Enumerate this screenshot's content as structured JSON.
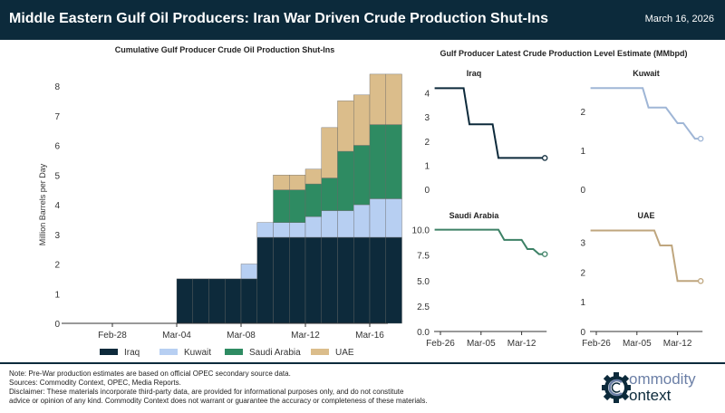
{
  "header": {
    "title": "Middle Eastern Gulf Oil Producers: Iran War Driven Crude Production Shut-Ins",
    "date": "March 16, 2026"
  },
  "colors": {
    "Iraq": "#0d2a3b",
    "Kuwait": "#b7cff2",
    "Saudi Arabia": "#2e8b62",
    "UAE": "#dbbd8b",
    "header": "#0c2a3b"
  },
  "line_colors": {
    "Iraq": "#0d2a3b",
    "Kuwait": "#9fb6d6",
    "Saudi Arabia": "#3d8166",
    "UAE": "#bfa67e"
  },
  "chart_data": [
    {
      "type": "bar",
      "stacked": true,
      "title": "Cumulative Gulf Producer Crude Oil Production Shut-Ins",
      "ylabel": "Million Barrels per Day",
      "xlabel": "",
      "ylim": [
        0,
        8.5
      ],
      "yticks": [
        "0",
        "1",
        "2",
        "3",
        "4",
        "5",
        "6",
        "7",
        "8"
      ],
      "xticks": [
        "Feb-28",
        "Mar-04",
        "Mar-08",
        "Mar-12",
        "Mar-16"
      ],
      "categories": [
        "Mar-03",
        "Mar-04",
        "Mar-05",
        "Mar-06",
        "Mar-07",
        "Mar-08",
        "Mar-09",
        "Mar-10",
        "Mar-11",
        "Mar-12",
        "Mar-13",
        "Mar-14",
        "Mar-15",
        "Mar-16"
      ],
      "legend_position": "bottom",
      "series": [
        {
          "name": "Iraq",
          "values": [
            1.5,
            1.5,
            1.5,
            1.5,
            1.5,
            2.9,
            2.9,
            2.9,
            2.9,
            2.9,
            2.9,
            2.9,
            2.9,
            2.9
          ]
        },
        {
          "name": "Kuwait",
          "values": [
            0,
            0,
            0,
            0,
            0.5,
            0.5,
            0.5,
            0.5,
            0.7,
            0.9,
            0.9,
            1.1,
            1.3,
            1.3
          ]
        },
        {
          "name": "Saudi Arabia",
          "values": [
            0,
            0,
            0,
            0,
            0,
            0,
            1.1,
            1.1,
            1.1,
            1.1,
            2.0,
            2.0,
            2.5,
            2.5
          ]
        },
        {
          "name": "UAE",
          "values": [
            0,
            0,
            0,
            0,
            0,
            0,
            0.5,
            0.5,
            0.5,
            1.7,
            1.7,
            1.7,
            1.7,
            1.7
          ]
        }
      ]
    },
    {
      "type": "line",
      "title": "Gulf Producer Latest Crude Production Level Estimate (MMbpd)",
      "dates": [
        "Feb-25",
        "Feb-26",
        "Feb-27",
        "Feb-28",
        "Mar-01",
        "Mar-02",
        "Mar-03",
        "Mar-04",
        "Mar-05",
        "Mar-06",
        "Mar-07",
        "Mar-08",
        "Mar-09",
        "Mar-10",
        "Mar-11",
        "Mar-12",
        "Mar-13",
        "Mar-14",
        "Mar-15",
        "Mar-16"
      ],
      "xticks": [
        "Feb-26",
        "Mar-05",
        "Mar-12"
      ],
      "panels": [
        {
          "name": "Iraq",
          "ylim": [
            0,
            4.4
          ],
          "yticks": [
            "0",
            "1",
            "2",
            "3",
            "4"
          ],
          "values": [
            4.2,
            4.2,
            4.2,
            4.2,
            4.2,
            4.2,
            2.7,
            2.7,
            2.7,
            2.7,
            2.7,
            1.3,
            1.3,
            1.3,
            1.3,
            1.3,
            1.3,
            1.3,
            1.3,
            1.3
          ]
        },
        {
          "name": "Kuwait",
          "ylim": [
            0,
            2.7
          ],
          "yticks": [
            "0",
            "1",
            "2"
          ],
          "values": [
            2.6,
            2.6,
            2.6,
            2.6,
            2.6,
            2.6,
            2.6,
            2.6,
            2.6,
            2.6,
            2.1,
            2.1,
            2.1,
            2.1,
            1.9,
            1.7,
            1.7,
            1.5,
            1.3,
            1.3
          ]
        },
        {
          "name": "Saudi Arabia",
          "ylim": [
            0,
            10.5
          ],
          "yticks": [
            "0.0",
            "2.5",
            "5.0",
            "7.5",
            "10.0"
          ],
          "values": [
            10,
            10,
            10,
            10,
            10,
            10,
            10,
            10,
            10,
            10,
            10,
            10,
            9,
            9,
            9,
            9,
            8.1,
            8.1,
            7.6,
            7.6
          ]
        },
        {
          "name": "UAE",
          "ylim": [
            0,
            3.6
          ],
          "yticks": [
            "0",
            "1",
            "2",
            "3"
          ],
          "values": [
            3.4,
            3.4,
            3.4,
            3.4,
            3.4,
            3.4,
            3.4,
            3.4,
            3.4,
            3.4,
            3.4,
            3.4,
            2.9,
            2.9,
            2.9,
            1.7,
            1.7,
            1.7,
            1.7,
            1.7
          ]
        }
      ]
    }
  ],
  "footer": {
    "lines": [
      "Note: Pre-War production estimates are based on official OPEC secondary source data.",
      "Sources: Commodity Context, OPEC, Media Reports.",
      "Disclaimer: These materials incorporate third-party data, are provided for informational purposes only, and do not constitute",
      "advice or opinion of any kind. Commodity Context does not warrant or guarantee the accuracy or completeness of these materials."
    ],
    "logo_text": "Commodity Context",
    "logo_icon": "gear-c-icon"
  }
}
